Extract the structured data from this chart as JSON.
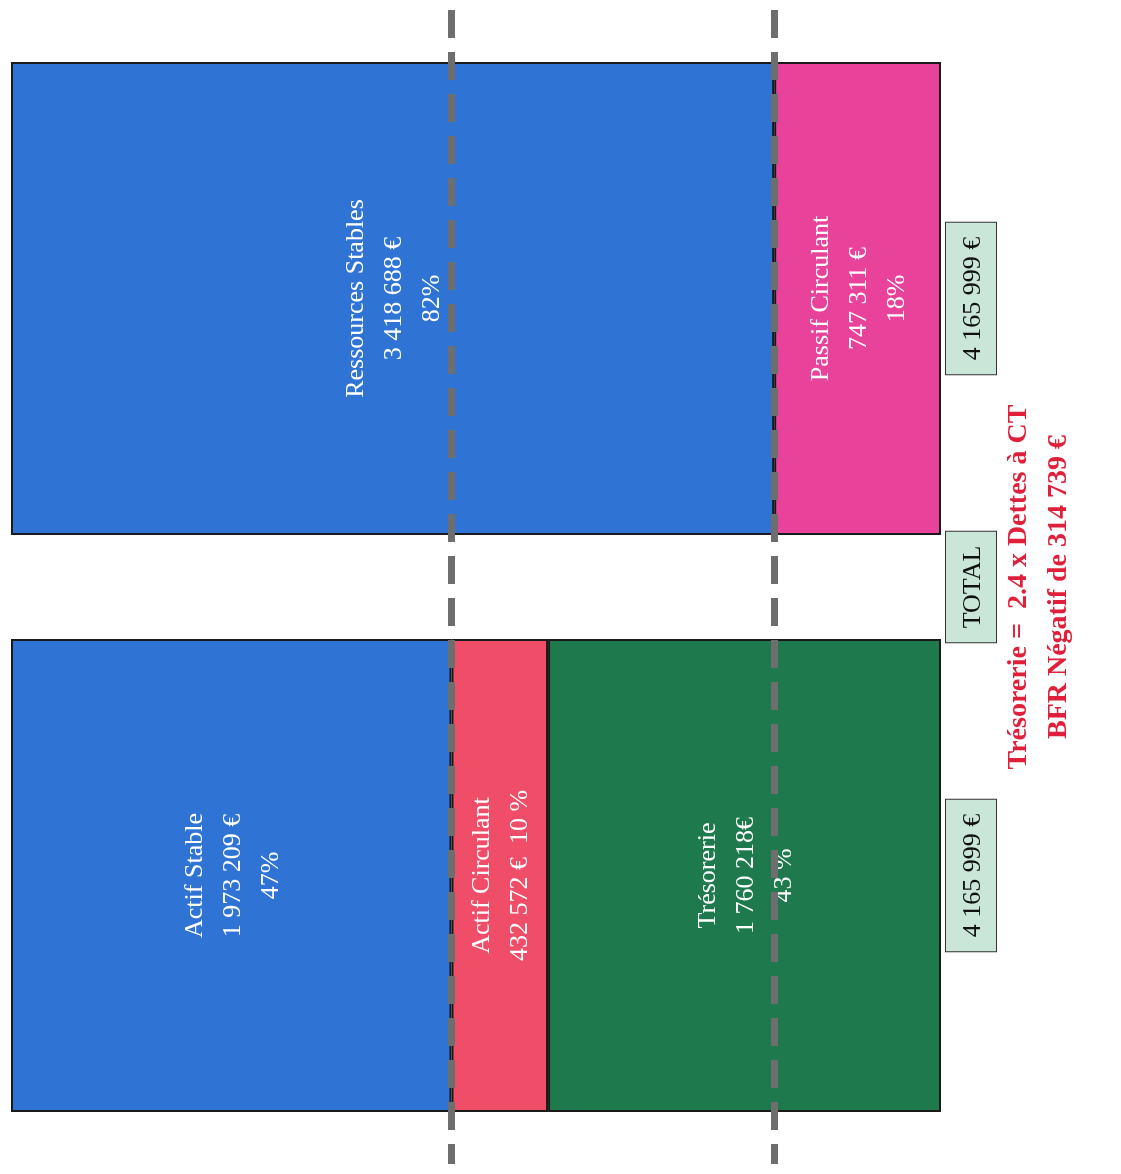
{
  "chart_data": {
    "type": "bar",
    "orientation": "horizontal",
    "stacked": true,
    "categories": [
      null,
      null
    ],
    "xlim": [
      0,
      4165999
    ],
    "series": [
      {
        "name": "Ressources Stables",
        "color": "#2f74d4",
        "values": [
          3418688,
          null
        ],
        "value_labels": [
          "3 418 688 €\n82%",
          null
        ]
      },
      {
        "name": "Passif Circulant",
        "color": "#e8429a",
        "values": [
          747311,
          null
        ],
        "value_labels": [
          "747 311 €\n18%",
          null
        ]
      },
      {
        "name": "Actif Stable",
        "color": "#2f74d4",
        "values": [
          null,
          1973209
        ],
        "value_labels": [
          null,
          "1 973 209 €\n47%"
        ]
      },
      {
        "name": "Actif Circulant",
        "color": "#ef4d68",
        "values": [
          null,
          432572
        ],
        "value_labels": [
          null,
          "432 572 €  10 %"
        ]
      },
      {
        "name": "Trésorerie",
        "color": "#1e7a4c",
        "values": [
          null,
          1760218
        ],
        "value_labels": [
          null,
          "1 760 218€\n43 %"
        ]
      }
    ],
    "totals": [
      "4 165 999 €",
      "4 165 999 €"
    ],
    "ref_lines": [
      {
        "axis": "x",
        "value": 1973209,
        "color": "#6e6e6e",
        "line_style": "dashed"
      },
      {
        "axis": "x",
        "value": 3418688,
        "color": "#6e6e6e",
        "line_style": "dashed"
      }
    ],
    "annotations": [
      "TOTAL",
      "Trésorerie =  2.4 x Dettes à CT",
      "BFR Négatif de 314 739 €"
    ],
    "legend": false
  }
}
